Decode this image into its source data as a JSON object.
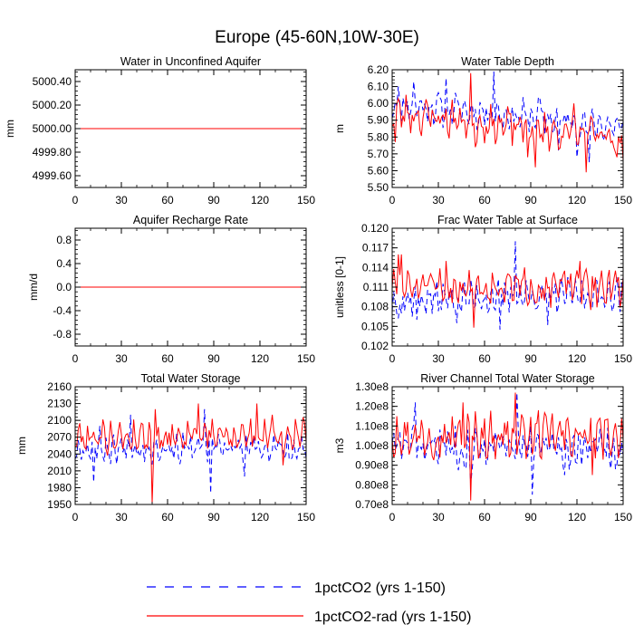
{
  "figure": {
    "title": "Europe (45-60N,10W-30E)"
  },
  "legend": [
    {
      "name": "1pctCO2 (yrs 1-150)",
      "color": "#0000ff",
      "dash": "dashed"
    },
    {
      "name": "1pctCO2-rad (yrs 1-150)",
      "color": "#ff0000",
      "dash": "solid"
    }
  ],
  "chart_data": [
    {
      "id": "water-unconfined-aquifer",
      "type": "line",
      "title": "Water in Unconfined Aquifer",
      "ylabel": "mm",
      "xlim": [
        0,
        150
      ],
      "ylim": [
        4999.5,
        5000.5
      ],
      "xticks": [
        0,
        30,
        60,
        90,
        120,
        150
      ],
      "xtick_labels": [
        "0",
        "30",
        "60",
        "90",
        "120",
        "150"
      ],
      "yticks": [
        4999.6,
        4999.8,
        5000.0,
        5000.2,
        5000.4
      ],
      "ytick_labels": [
        "4999.60",
        "4999.80",
        "5000.00",
        "5000.20",
        "5000.40"
      ],
      "constant": 5000.0,
      "series": [
        {
          "name": "1pctCO2 (yrs 1-150)",
          "const": 5000.0
        },
        {
          "name": "1pctCO2-rad (yrs 1-150)",
          "const": 5000.0
        }
      ]
    },
    {
      "id": "water-table-depth",
      "type": "line",
      "title": "Water Table Depth",
      "ylabel": "m",
      "xlim": [
        0,
        150
      ],
      "ylim": [
        5.5,
        6.2
      ],
      "xticks": [
        0,
        30,
        60,
        90,
        120,
        150
      ],
      "xtick_labels": [
        "0",
        "30",
        "60",
        "90",
        "120",
        "150"
      ],
      "yticks": [
        5.5,
        5.6,
        5.7,
        5.8,
        5.9,
        6.0,
        6.1,
        6.2
      ],
      "ytick_labels": [
        "5.50",
        "5.60",
        "5.70",
        "5.80",
        "5.90",
        "6.00",
        "6.10",
        "6.20"
      ],
      "series": [
        {
          "name": "1pctCO2 (yrs 1-150)",
          "gen": {
            "seed": 11,
            "start": 6.0,
            "end": 5.86,
            "amp": 0.09,
            "period": 5.5,
            "spikes": [
              [
                4,
                6.1
              ],
              [
                14,
                6.13
              ],
              [
                35,
                6.15
              ],
              [
                66,
                6.19
              ],
              [
                95,
                6.04
              ],
              [
                108,
                5.72
              ],
              [
                120,
                5.68
              ],
              [
                128,
                5.65
              ]
            ]
          }
        },
        {
          "name": "1pctCO2-rad (yrs 1-150)",
          "gen": {
            "seed": 23,
            "start": 5.95,
            "end": 5.78,
            "amp": 0.1,
            "period": 6.0,
            "spikes": [
              [
                2,
                5.77
              ],
              [
                51,
                6.18
              ],
              [
                54,
                5.74
              ],
              [
                88,
                5.68
              ],
              [
                93,
                5.62
              ],
              [
                118,
                6.0
              ],
              [
                126,
                5.59
              ],
              [
                146,
                5.68
              ]
            ]
          }
        }
      ]
    },
    {
      "id": "aquifer-recharge-rate",
      "type": "line",
      "title": "Aquifer Recharge Rate",
      "ylabel": "mm/d",
      "xlim": [
        0,
        150
      ],
      "ylim": [
        -1.0,
        1.0
      ],
      "xticks": [
        0,
        30,
        60,
        90,
        120,
        150
      ],
      "xtick_labels": [
        "0",
        "30",
        "60",
        "90",
        "120",
        "150"
      ],
      "yticks": [
        -0.8,
        -0.4,
        0.0,
        0.4,
        0.8
      ],
      "ytick_labels": [
        "-0.8",
        "-0.4",
        "0.0",
        "0.4",
        "0.8"
      ],
      "series": [
        {
          "name": "1pctCO2 (yrs 1-150)",
          "const": 0.0
        },
        {
          "name": "1pctCO2-rad (yrs 1-150)",
          "const": 0.0
        }
      ]
    },
    {
      "id": "frac-water-table-surface",
      "type": "line",
      "title": "Frac Water Table at Surface",
      "ylabel": "unitless [0-1]",
      "xlim": [
        0,
        150
      ],
      "ylim": [
        0.102,
        0.12
      ],
      "xticks": [
        0,
        30,
        60,
        90,
        120,
        150
      ],
      "xtick_labels": [
        "0",
        "30",
        "60",
        "90",
        "120",
        "150"
      ],
      "yticks": [
        0.102,
        0.105,
        0.108,
        0.111,
        0.114,
        0.117,
        0.12
      ],
      "ytick_labels": [
        "0.102",
        "0.105",
        "0.108",
        "0.111",
        "0.114",
        "0.117",
        "0.120"
      ],
      "series": [
        {
          "name": "1pctCO2 (yrs 1-150)",
          "gen": {
            "seed": 37,
            "start": 0.109,
            "end": 0.11,
            "amp": 0.0022,
            "period": 4.5,
            "spikes": [
              [
                6,
                0.107
              ],
              [
                16,
                0.106
              ],
              [
                42,
                0.1055
              ],
              [
                80,
                0.118
              ],
              [
                70,
                0.1045
              ],
              [
                101,
                0.1052
              ],
              [
                136,
                0.1095
              ]
            ]
          }
        },
        {
          "name": "1pctCO2-rad (yrs 1-150)",
          "gen": {
            "seed": 51,
            "start": 0.111,
            "end": 0.111,
            "amp": 0.0024,
            "period": 5.0,
            "spikes": [
              [
                4,
                0.116
              ],
              [
                6,
                0.116
              ],
              [
                35,
                0.115
              ],
              [
                53,
                0.1048
              ],
              [
                112,
                0.1135
              ],
              [
                122,
                0.115
              ],
              [
                129,
                0.1075
              ]
            ]
          }
        }
      ]
    },
    {
      "id": "total-water-storage",
      "type": "line",
      "title": "Total Water Storage",
      "ylabel": "mm",
      "xlim": [
        0,
        150
      ],
      "ylim": [
        1950,
        2160
      ],
      "xticks": [
        0,
        30,
        60,
        90,
        120,
        150
      ],
      "xtick_labels": [
        "0",
        "30",
        "60",
        "90",
        "120",
        "150"
      ],
      "yticks": [
        1950,
        1980,
        2010,
        2040,
        2070,
        2100,
        2130,
        2160
      ],
      "ytick_labels": [
        "1950",
        "1980",
        "2010",
        "2040",
        "2070",
        "2100",
        "2130",
        "2160"
      ],
      "series": [
        {
          "name": "1pctCO2 (yrs 1-150)",
          "gen": {
            "seed": 67,
            "start": 2050,
            "end": 2050,
            "amp": 22,
            "period": 4.5,
            "spikes": [
              [
                12,
                1990
              ],
              [
                16,
                2090
              ],
              [
                36,
                2110
              ],
              [
                84,
                2120
              ],
              [
                88,
                1970
              ],
              [
                110,
                2000
              ],
              [
                140,
                2030
              ]
            ]
          }
        },
        {
          "name": "1pctCO2-rad (yrs 1-150)",
          "gen": {
            "seed": 79,
            "start": 2070,
            "end": 2075,
            "amp": 25,
            "period": 5.0,
            "spikes": [
              [
                3,
                2095
              ],
              [
                50,
                1952
              ],
              [
                52,
                2120
              ],
              [
                80,
                2130
              ],
              [
                118,
                2130
              ],
              [
                128,
                2110
              ],
              [
                135,
                2020
              ]
            ]
          }
        }
      ]
    },
    {
      "id": "river-channel-storage",
      "type": "line",
      "title": "River Channel Total Water Storage",
      "ylabel": "m3",
      "xlim": [
        0,
        150
      ],
      "ylim": [
        70000000,
        130000000
      ],
      "xticks": [
        0,
        30,
        60,
        90,
        120,
        150
      ],
      "xtick_labels": [
        "0",
        "30",
        "60",
        "90",
        "120",
        "150"
      ],
      "yticks": [
        70000000,
        80000000,
        90000000,
        100000000,
        110000000,
        120000000,
        130000000
      ],
      "ytick_labels": [
        "0.70e8",
        "0.80e8",
        "0.90e8",
        "1.00e8",
        "1.10e8",
        "1.20e8",
        "1.30e8"
      ],
      "series": [
        {
          "name": "1pctCO2 (yrs 1-150)",
          "gen": {
            "seed": 83,
            "start": 100000000,
            "end": 98000000,
            "amp": 9000000,
            "period": 4.5,
            "spikes": [
              [
                15,
                122000000
              ],
              [
                51,
                80000000
              ],
              [
                81,
                127000000
              ],
              [
                91,
                75000000
              ],
              [
                112,
                85000000
              ],
              [
                145,
                88000000
              ]
            ]
          }
        },
        {
          "name": "1pctCO2-rad (yrs 1-150)",
          "gen": {
            "seed": 97,
            "start": 105000000,
            "end": 105000000,
            "amp": 10000000,
            "period": 5.0,
            "spikes": [
              [
                3,
                115000000
              ],
              [
                46,
                122000000
              ],
              [
                51,
                72000000
              ],
              [
                80,
                127000000
              ],
              [
                95,
                118000000
              ],
              [
                130,
                85000000
              ]
            ]
          }
        }
      ]
    }
  ]
}
